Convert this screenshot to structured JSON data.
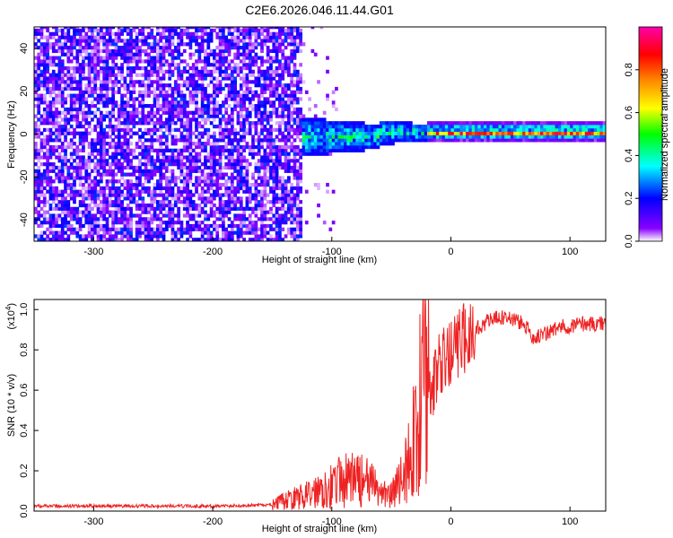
{
  "chart_data": [
    {
      "type": "heatmap",
      "title": "C2E6.2026.046.11.44.G01",
      "xlabel": "Height of straight line (km)",
      "ylabel": "Frequency (Hz)",
      "xlim": [
        -350,
        130
      ],
      "ylim": [
        -50,
        50
      ],
      "xticks": [
        -300,
        -200,
        -100,
        0,
        100
      ],
      "yticks": [
        -40,
        -20,
        0,
        20,
        40
      ],
      "colorbar": {
        "label": "Normalized spectral amplitude",
        "range": [
          0.0,
          1.0
        ],
        "ticks": [
          "0.0",
          "0.2",
          "0.4",
          "0.6",
          "0.8"
        ],
        "tick_values": [
          0.0,
          0.2,
          0.4,
          0.6,
          0.8
        ],
        "colors": [
          "#ffffff",
          "#8800ff",
          "#0000ff",
          "#00ffff",
          "#00ff00",
          "#ffff00",
          "#ff8800",
          "#ff0000",
          "#ff00aa"
        ]
      },
      "regions": [
        {
          "name": "noise",
          "x_range": [
            -350,
            -125
          ],
          "freq_range": [
            -50,
            50
          ],
          "amplitude_range": [
            0.0,
            0.25
          ]
        },
        {
          "name": "signal-onset",
          "x_range": [
            -145,
            -20
          ],
          "freq_range": [
            -10,
            10
          ],
          "amplitude_range": [
            0.2,
            0.6
          ]
        },
        {
          "name": "strong-carrier",
          "x_range": [
            -20,
            130
          ],
          "freq_range": [
            -2,
            2
          ],
          "amplitude_range": [
            0.6,
            1.0
          ]
        }
      ]
    },
    {
      "type": "line",
      "xlabel": "Height of straight line (km)",
      "ylabel": "SNR (10 * v/v)",
      "scale_label": "(x10",
      "scale_exponent": "4",
      "scale_suffix": ")",
      "xlim": [
        -350,
        130
      ],
      "ylim": [
        0.0,
        1.05
      ],
      "xticks": [
        -300,
        -200,
        -100,
        0,
        100
      ],
      "yticks": [
        "0.0",
        "0.2",
        "0.4",
        "0.6",
        "0.8",
        "1.0"
      ],
      "ytick_values": [
        0.0,
        0.2,
        0.4,
        0.6,
        0.8,
        1.0
      ],
      "series": [
        {
          "name": "SNR",
          "color": "#ee2222",
          "x": [
            -350,
            -300,
            -250,
            -200,
            -150,
            -140,
            -120,
            -110,
            -100,
            -90,
            -80,
            -70,
            -60,
            -50,
            -45,
            -40,
            -35,
            -30,
            -25,
            -20,
            -15,
            -10,
            0,
            10,
            20,
            30,
            40,
            50,
            60,
            70,
            80,
            90,
            100,
            110,
            120,
            130
          ],
          "values": [
            0.025,
            0.025,
            0.025,
            0.025,
            0.03,
            0.05,
            0.08,
            0.11,
            0.13,
            0.15,
            0.16,
            0.14,
            0.1,
            0.08,
            0.12,
            0.18,
            0.25,
            0.4,
            0.55,
            0.6,
            0.65,
            0.7,
            0.78,
            0.85,
            0.9,
            0.94,
            0.96,
            0.96,
            0.93,
            0.86,
            0.88,
            0.91,
            0.92,
            0.93,
            0.93,
            0.93
          ]
        }
      ]
    }
  ]
}
